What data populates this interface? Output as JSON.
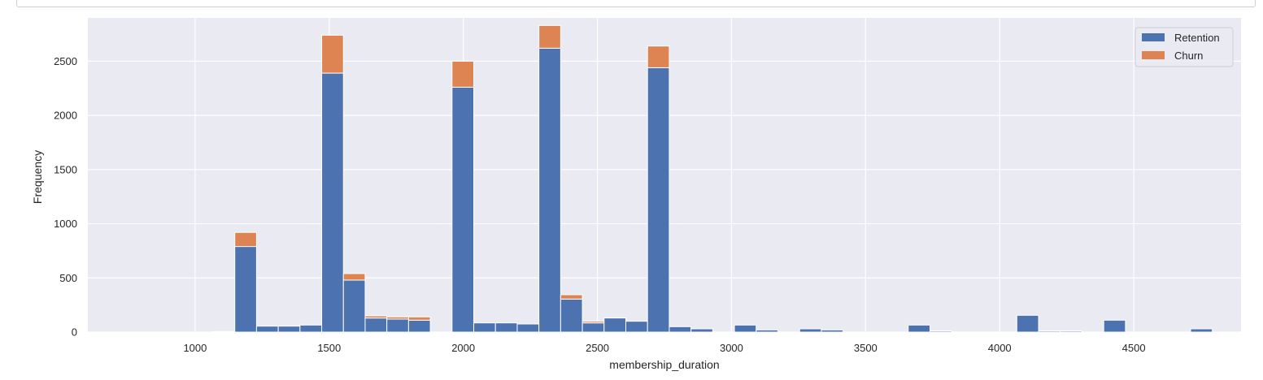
{
  "chart_data": {
    "type": "bar",
    "subtype": "stacked-histogram",
    "title": "",
    "xlabel": "membership_duration",
    "ylabel": "Frequency",
    "xlim": [
      600,
      4900
    ],
    "ylim": [
      0,
      2900
    ],
    "xticks": [
      1000,
      1500,
      2000,
      2500,
      3000,
      3500,
      4000,
      4500
    ],
    "yticks": [
      0,
      500,
      1000,
      1500,
      2000,
      2500
    ],
    "grid": true,
    "legend_position": "top-right",
    "bin_start": 662,
    "bin_width": 81,
    "series": [
      {
        "name": "Retention",
        "color": "#4c72b0",
        "values": [
          0,
          0,
          0,
          0,
          0,
          5,
          790,
          55,
          55,
          65,
          2390,
          480,
          130,
          120,
          110,
          0,
          2260,
          85,
          85,
          75,
          2620,
          305,
          85,
          130,
          100,
          2440,
          50,
          30,
          0,
          65,
          20,
          0,
          30,
          20,
          0,
          0,
          0,
          65,
          10,
          0,
          0,
          0,
          155,
          10,
          10,
          0,
          110,
          0,
          0,
          0,
          30
        ]
      },
      {
        "name": "Churn",
        "color": "#dd8452",
        "values": [
          0,
          0,
          0,
          0,
          0,
          0,
          130,
          0,
          0,
          0,
          350,
          60,
          20,
          20,
          30,
          0,
          240,
          0,
          0,
          0,
          210,
          40,
          15,
          0,
          0,
          200,
          0,
          0,
          0,
          0,
          0,
          0,
          0,
          0,
          0,
          0,
          0,
          0,
          0,
          0,
          0,
          0,
          0,
          0,
          0,
          0,
          0,
          0,
          0,
          0,
          0
        ]
      }
    ]
  }
}
